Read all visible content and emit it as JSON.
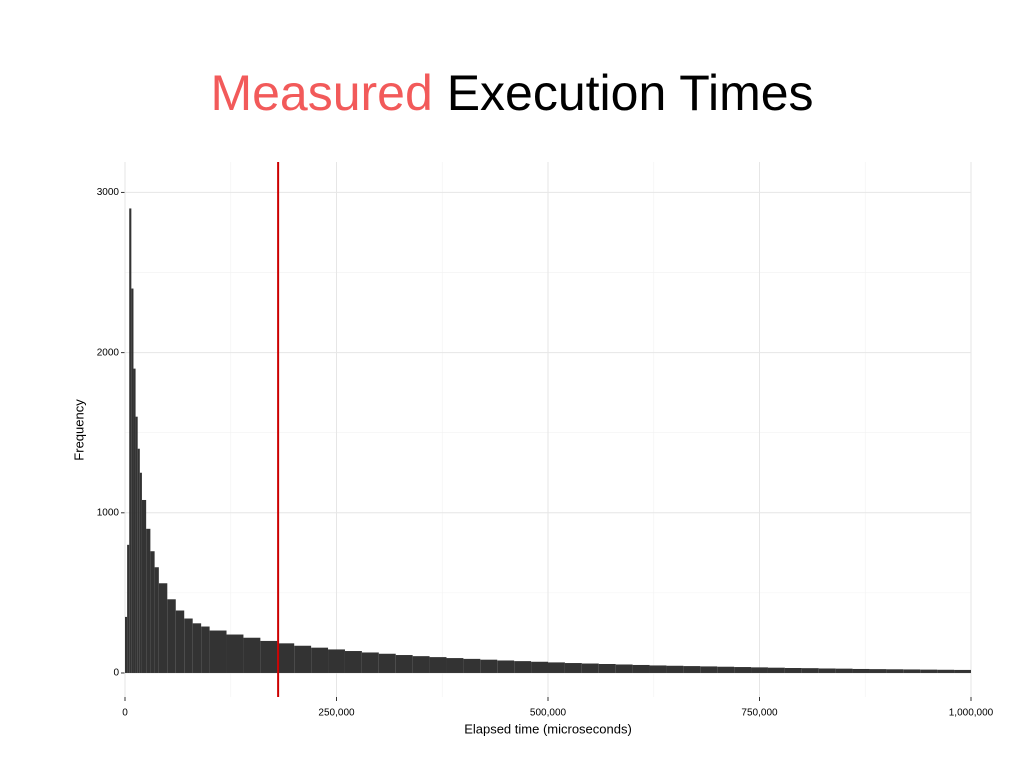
{
  "chart_data": {
    "type": "histogram",
    "title_parts": [
      {
        "text": "Measured",
        "color": "#f25a5a"
      },
      {
        "text": "Execution Times",
        "color": "#000000"
      }
    ],
    "xlabel": "Elapsed time (microseconds)",
    "ylabel": "Frequency",
    "bins": [
      0,
      2500,
      5000,
      7500,
      10000,
      12500,
      15000,
      17500,
      20000,
      25000,
      30000,
      35000,
      40000,
      50000,
      60000,
      70000,
      80000,
      90000,
      100000,
      120000,
      140000,
      160000,
      180000,
      200000,
      220000,
      240000,
      260000,
      280000,
      300000,
      320000,
      340000,
      360000,
      380000,
      400000,
      420000,
      440000,
      460000,
      480000,
      500000,
      520000,
      540000,
      560000,
      580000,
      600000,
      620000,
      640000,
      660000,
      680000,
      700000,
      720000,
      740000,
      760000,
      780000,
      800000,
      820000,
      840000,
      860000,
      880000,
      900000,
      920000,
      940000,
      960000,
      980000,
      1000000
    ],
    "values": [
      350,
      800,
      2900,
      2400,
      1900,
      1600,
      1400,
      1250,
      1080,
      900,
      760,
      660,
      560,
      460,
      390,
      340,
      310,
      290,
      265,
      240,
      220,
      200,
      185,
      170,
      158,
      147,
      137,
      128,
      120,
      112,
      105,
      99,
      93,
      88,
      83,
      78,
      74,
      70,
      66,
      62,
      59,
      56,
      53,
      50,
      47,
      45,
      43,
      41,
      39,
      37,
      35,
      33,
      31,
      30,
      28,
      27,
      25,
      24,
      23,
      22,
      21,
      20,
      19
    ],
    "color": "#333333",
    "vline": 181000,
    "vline_color": "#cc0000",
    "xlim": [
      0,
      1000000
    ],
    "xticks": [
      0,
      {
        "value": 250000,
        "label": "250,000"
      },
      {
        "value": 500000,
        "label": "500,000"
      },
      {
        "value": 750000,
        "label": "750,000"
      },
      {
        "value": 1000000,
        "label": "1,000,000"
      }
    ],
    "ylim": [
      -150,
      3190
    ],
    "yticks": [
      0,
      1000,
      2000,
      3000
    ],
    "grid": true,
    "minor_grid": true
  }
}
